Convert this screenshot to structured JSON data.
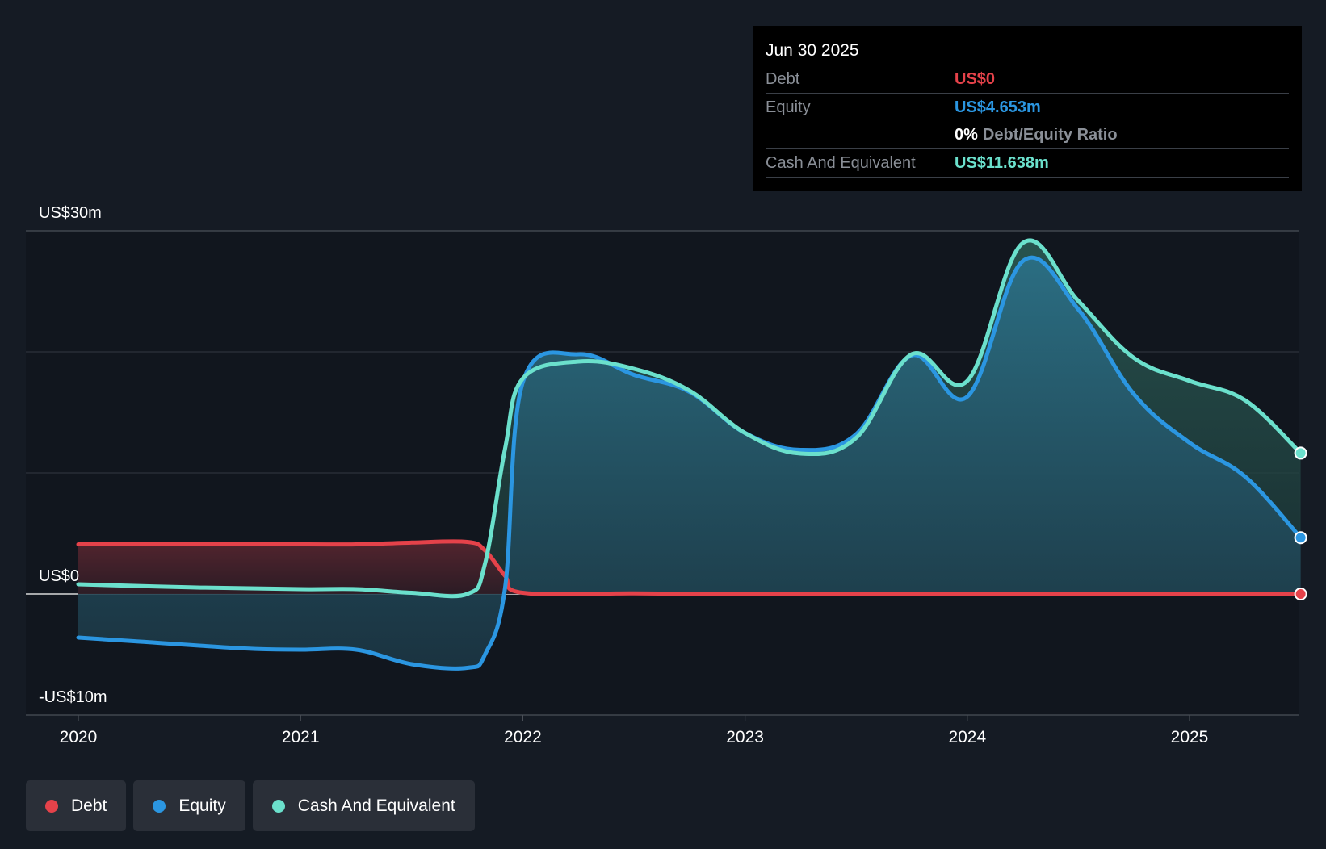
{
  "tooltip": {
    "date": "Jun 30 2025",
    "debt_label": "Debt",
    "debt_value": "US$0",
    "equity_label": "Equity",
    "equity_value": "US$4.653m",
    "ratio_value": "0%",
    "ratio_label": "Debt/Equity Ratio",
    "cash_label": "Cash And Equivalent",
    "cash_value": "US$11.638m"
  },
  "legend": {
    "items": [
      {
        "label": "Debt",
        "color": "#e5424a"
      },
      {
        "label": "Equity",
        "color": "#2b96e1"
      },
      {
        "label": "Cash And Equivalent",
        "color": "#6be0cc"
      }
    ]
  },
  "colors": {
    "debt": "#e5424a",
    "equity": "#2b96e1",
    "cash": "#6be0cc",
    "background": "#151b24"
  },
  "chart_data": {
    "type": "area",
    "y_top_label": "US$30m",
    "y_zero_label": "US$0",
    "y_bottom_label": "-US$10m",
    "ylim": [
      -10,
      30
    ],
    "xlim": [
      2019.77,
      2025.5
    ],
    "y_gridlines": [
      30,
      20,
      10
    ],
    "x_ticks": [
      {
        "value": 2020,
        "label": "2020"
      },
      {
        "value": 2021,
        "label": "2021"
      },
      {
        "value": 2022,
        "label": "2022"
      },
      {
        "value": 2023,
        "label": "2023"
      },
      {
        "value": 2024,
        "label": "2024"
      },
      {
        "value": 2025,
        "label": "2025"
      }
    ],
    "series": [
      {
        "name": "Debt",
        "key": "debt",
        "points": [
          [
            2020.0,
            4.1
          ],
          [
            2020.5,
            4.1
          ],
          [
            2021.0,
            4.1
          ],
          [
            2021.25,
            4.1
          ],
          [
            2021.5,
            4.25
          ],
          [
            2021.75,
            4.3
          ],
          [
            2021.83,
            3.6
          ],
          [
            2021.92,
            1.5
          ],
          [
            2022.0,
            0.1
          ],
          [
            2022.5,
            0.05
          ],
          [
            2023.0,
            0.0
          ],
          [
            2024.0,
            0.0
          ],
          [
            2025.0,
            0.0
          ],
          [
            2025.5,
            0.0
          ]
        ]
      },
      {
        "name": "Equity",
        "key": "equity",
        "points": [
          [
            2020.0,
            -3.6
          ],
          [
            2020.25,
            -3.9
          ],
          [
            2020.75,
            -4.5
          ],
          [
            2021.0,
            -4.6
          ],
          [
            2021.25,
            -4.6
          ],
          [
            2021.5,
            -5.8
          ],
          [
            2021.75,
            -6.1
          ],
          [
            2021.83,
            -5.0
          ],
          [
            2021.92,
            0.5
          ],
          [
            2022.0,
            17.5
          ],
          [
            2022.25,
            19.8
          ],
          [
            2022.5,
            18.1
          ],
          [
            2022.75,
            16.7
          ],
          [
            2023.0,
            13.3
          ],
          [
            2023.25,
            11.9
          ],
          [
            2023.5,
            13.2
          ],
          [
            2023.75,
            19.7
          ],
          [
            2024.0,
            16.3
          ],
          [
            2024.25,
            27.5
          ],
          [
            2024.5,
            23.5
          ],
          [
            2024.75,
            16.5
          ],
          [
            2025.0,
            12.5
          ],
          [
            2025.25,
            9.7
          ],
          [
            2025.5,
            4.653
          ]
        ]
      },
      {
        "name": "Cash And Equivalent",
        "key": "cash",
        "points": [
          [
            2020.0,
            0.8
          ],
          [
            2020.5,
            0.55
          ],
          [
            2021.0,
            0.4
          ],
          [
            2021.25,
            0.4
          ],
          [
            2021.5,
            0.1
          ],
          [
            2021.75,
            0.0
          ],
          [
            2021.83,
            2.5
          ],
          [
            2021.92,
            12.0
          ],
          [
            2022.0,
            17.8
          ],
          [
            2022.25,
            19.2
          ],
          [
            2022.5,
            18.6
          ],
          [
            2022.75,
            16.8
          ],
          [
            2023.0,
            13.3
          ],
          [
            2023.25,
            11.6
          ],
          [
            2023.5,
            12.9
          ],
          [
            2023.75,
            19.8
          ],
          [
            2024.0,
            17.6
          ],
          [
            2024.25,
            29.0
          ],
          [
            2024.5,
            24.2
          ],
          [
            2024.75,
            19.5
          ],
          [
            2025.0,
            17.6
          ],
          [
            2025.25,
            16.0
          ],
          [
            2025.5,
            11.638
          ]
        ]
      }
    ]
  }
}
